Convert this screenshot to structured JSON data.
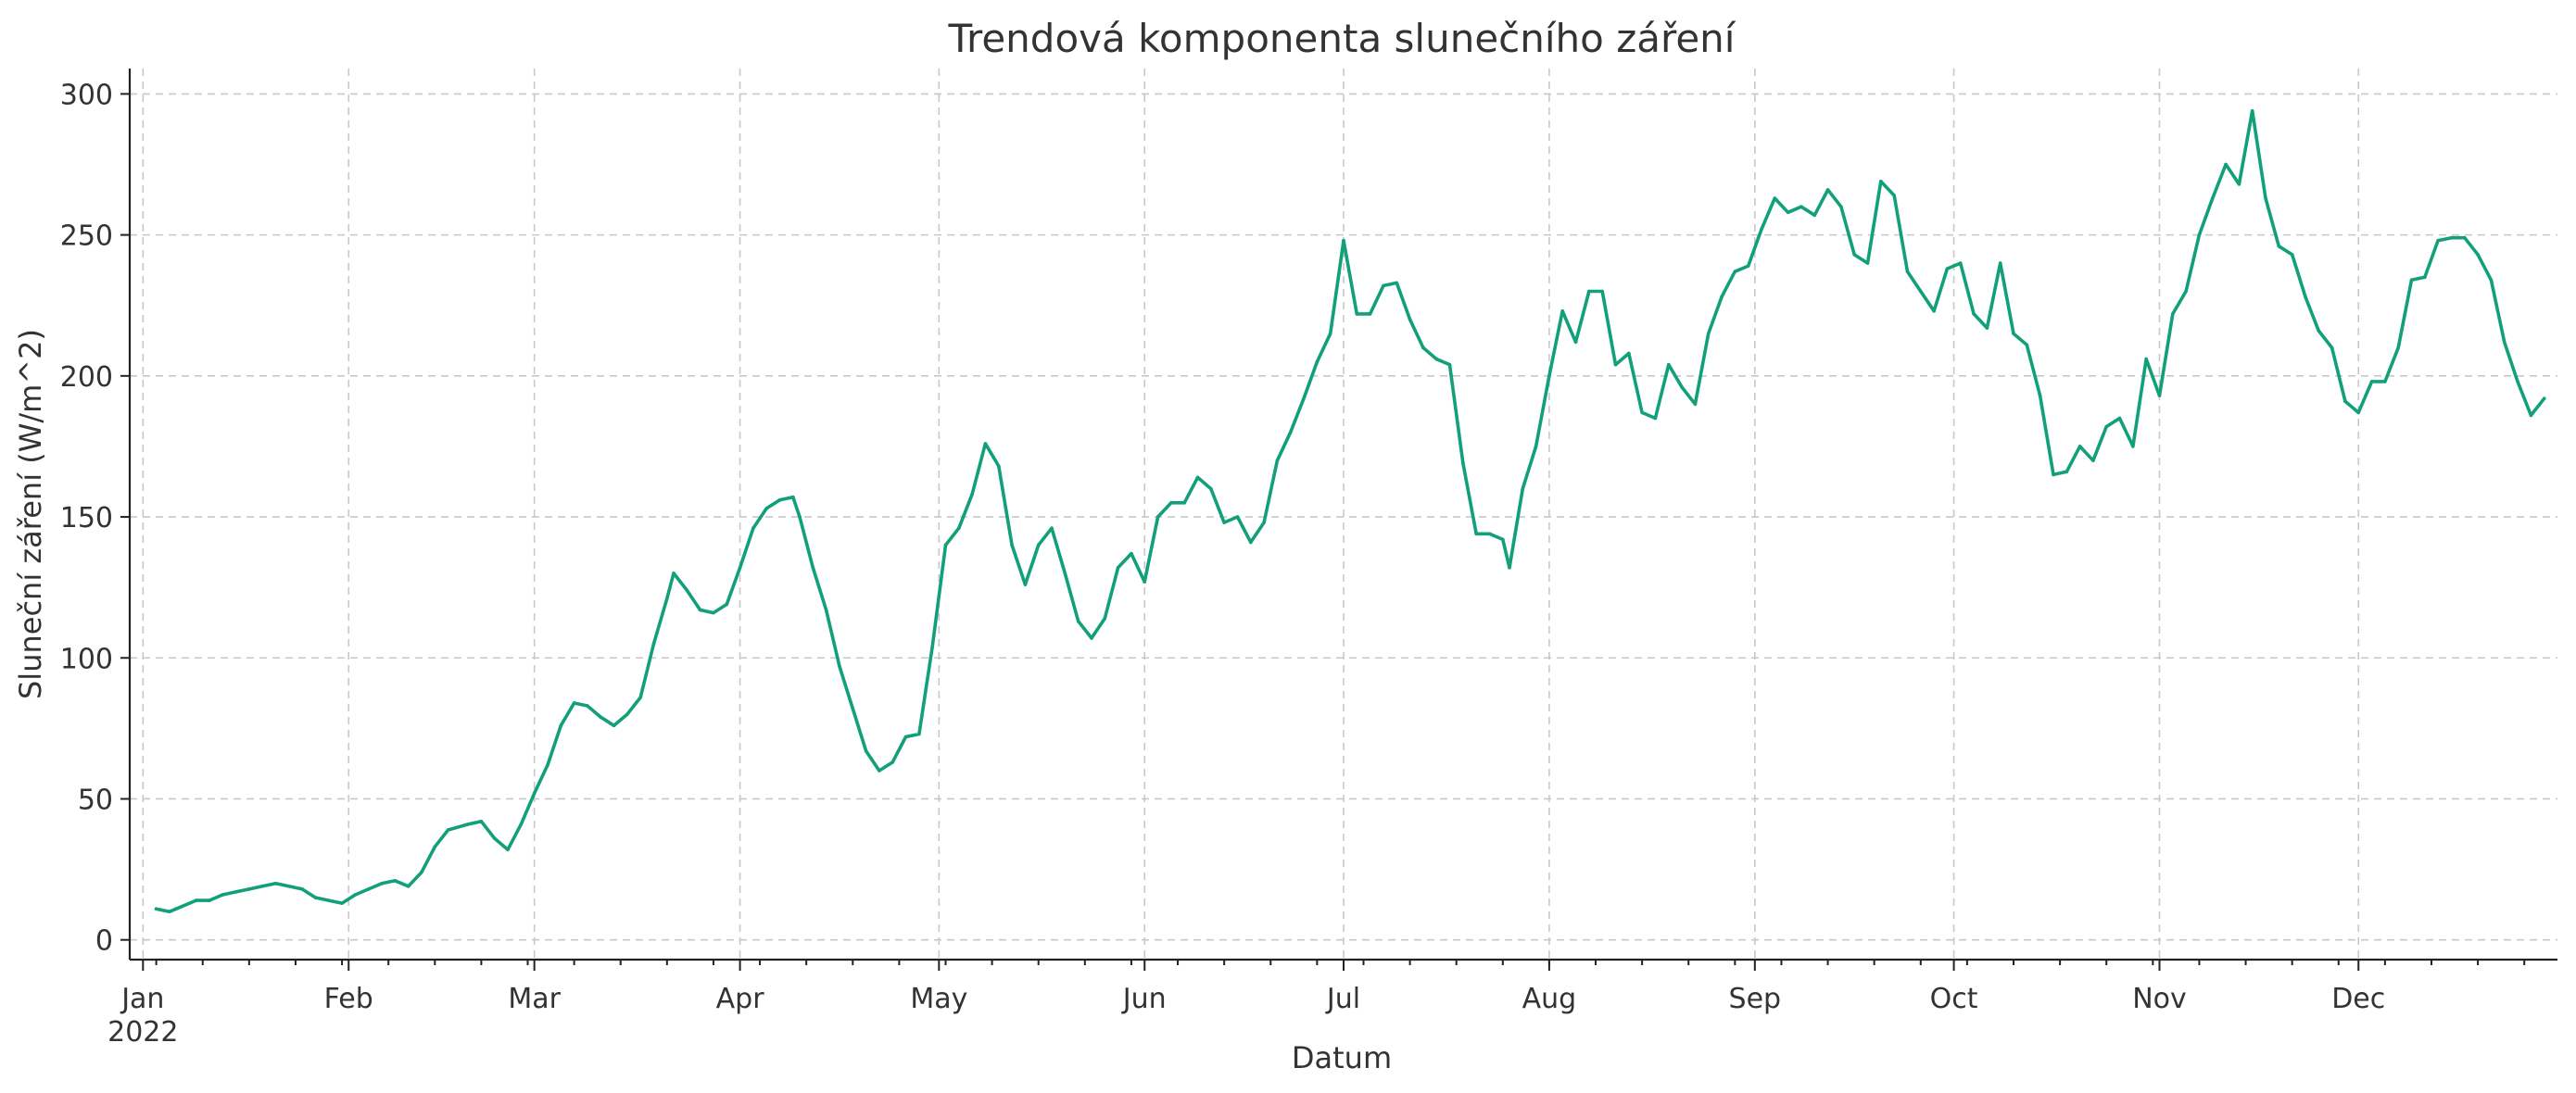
{
  "chart_data": {
    "type": "line",
    "title": "Trendová komponenta slunečního záření",
    "xlabel": "Datum",
    "ylabel": "Sluneční záření (W/m^2)",
    "x_axis": {
      "type": "date",
      "range": [
        "2021-12-30",
        "2022-12-31"
      ],
      "ticks": [
        {
          "date": "2022-01-01",
          "label": "Jan",
          "sublabel": "2022"
        },
        {
          "date": "2022-02-01",
          "label": "Feb"
        },
        {
          "date": "2022-03-01",
          "label": "Mar"
        },
        {
          "date": "2022-04-01",
          "label": "Apr"
        },
        {
          "date": "2022-05-01",
          "label": "May"
        },
        {
          "date": "2022-06-01",
          "label": "Jun"
        },
        {
          "date": "2022-07-01",
          "label": "Jul"
        },
        {
          "date": "2022-08-01",
          "label": "Aug"
        },
        {
          "date": "2022-09-01",
          "label": "Sep"
        },
        {
          "date": "2022-10-01",
          "label": "Oct"
        },
        {
          "date": "2022-11-01",
          "label": "Nov"
        },
        {
          "date": "2022-12-01",
          "label": "Dec"
        }
      ]
    },
    "ylim": [
      -7,
      309
    ],
    "yticks": [
      0,
      50,
      100,
      150,
      200,
      250,
      300
    ],
    "grid": true,
    "series": [
      {
        "color": "#12a07a",
        "points": [
          [
            "2022-01-03",
            11
          ],
          [
            "2022-01-05",
            10
          ],
          [
            "2022-01-07",
            12
          ],
          [
            "2022-01-09",
            14
          ],
          [
            "2022-01-11",
            14
          ],
          [
            "2022-01-13",
            16
          ],
          [
            "2022-01-15",
            17
          ],
          [
            "2022-01-17",
            18
          ],
          [
            "2022-01-19",
            19
          ],
          [
            "2022-01-21",
            20
          ],
          [
            "2022-01-23",
            19
          ],
          [
            "2022-01-25",
            18
          ],
          [
            "2022-01-27",
            15
          ],
          [
            "2022-01-29",
            14
          ],
          [
            "2022-01-31",
            13
          ],
          [
            "2022-02-02",
            16
          ],
          [
            "2022-02-04",
            18
          ],
          [
            "2022-02-06",
            20
          ],
          [
            "2022-02-08",
            21
          ],
          [
            "2022-02-10",
            19
          ],
          [
            "2022-02-12",
            24
          ],
          [
            "2022-02-14",
            33
          ],
          [
            "2022-02-16",
            39
          ],
          [
            "2022-02-19",
            41
          ],
          [
            "2022-02-21",
            42
          ],
          [
            "2022-02-23",
            36
          ],
          [
            "2022-02-25",
            32
          ],
          [
            "2022-02-27",
            41
          ],
          [
            "2022-03-01",
            52
          ],
          [
            "2022-03-03",
            62
          ],
          [
            "2022-03-05",
            76
          ],
          [
            "2022-03-07",
            84
          ],
          [
            "2022-03-09",
            83
          ],
          [
            "2022-03-11",
            79
          ],
          [
            "2022-03-13",
            76
          ],
          [
            "2022-03-15",
            80
          ],
          [
            "2022-03-17",
            86
          ],
          [
            "2022-03-19",
            105
          ],
          [
            "2022-03-21",
            121
          ],
          [
            "2022-03-22",
            130
          ],
          [
            "2022-03-24",
            124
          ],
          [
            "2022-03-26",
            117
          ],
          [
            "2022-03-28",
            116
          ],
          [
            "2022-03-30",
            119
          ],
          [
            "2022-04-01",
            132
          ],
          [
            "2022-04-03",
            146
          ],
          [
            "2022-04-05",
            153
          ],
          [
            "2022-04-07",
            156
          ],
          [
            "2022-04-09",
            157
          ],
          [
            "2022-04-10",
            150
          ],
          [
            "2022-04-12",
            132
          ],
          [
            "2022-04-14",
            117
          ],
          [
            "2022-04-16",
            97
          ],
          [
            "2022-04-18",
            82
          ],
          [
            "2022-04-20",
            67
          ],
          [
            "2022-04-22",
            60
          ],
          [
            "2022-04-24",
            63
          ],
          [
            "2022-04-26",
            72
          ],
          [
            "2022-04-28",
            73
          ],
          [
            "2022-04-30",
            104
          ],
          [
            "2022-05-02",
            140
          ],
          [
            "2022-05-04",
            146
          ],
          [
            "2022-05-06",
            158
          ],
          [
            "2022-05-08",
            176
          ],
          [
            "2022-05-10",
            168
          ],
          [
            "2022-05-12",
            140
          ],
          [
            "2022-05-14",
            126
          ],
          [
            "2022-05-16",
            140
          ],
          [
            "2022-05-18",
            146
          ],
          [
            "2022-05-20",
            130
          ],
          [
            "2022-05-22",
            113
          ],
          [
            "2022-05-24",
            107
          ],
          [
            "2022-05-26",
            114
          ],
          [
            "2022-05-28",
            132
          ],
          [
            "2022-05-30",
            137
          ],
          [
            "2022-06-01",
            127
          ],
          [
            "2022-06-03",
            150
          ],
          [
            "2022-06-05",
            155
          ],
          [
            "2022-06-07",
            155
          ],
          [
            "2022-06-09",
            164
          ],
          [
            "2022-06-11",
            160
          ],
          [
            "2022-06-13",
            148
          ],
          [
            "2022-06-15",
            150
          ],
          [
            "2022-06-17",
            141
          ],
          [
            "2022-06-19",
            148
          ],
          [
            "2022-06-21",
            170
          ],
          [
            "2022-06-23",
            180
          ],
          [
            "2022-06-25",
            192
          ],
          [
            "2022-06-27",
            205
          ],
          [
            "2022-06-29",
            215
          ],
          [
            "2022-07-01",
            248
          ],
          [
            "2022-07-03",
            222
          ],
          [
            "2022-07-05",
            222
          ],
          [
            "2022-07-07",
            232
          ],
          [
            "2022-07-09",
            233
          ],
          [
            "2022-07-11",
            220
          ],
          [
            "2022-07-13",
            210
          ],
          [
            "2022-07-15",
            206
          ],
          [
            "2022-07-17",
            204
          ],
          [
            "2022-07-19",
            169
          ],
          [
            "2022-07-21",
            144
          ],
          [
            "2022-07-23",
            144
          ],
          [
            "2022-07-25",
            142
          ],
          [
            "2022-07-26",
            132
          ],
          [
            "2022-07-28",
            160
          ],
          [
            "2022-07-30",
            175
          ],
          [
            "2022-08-01",
            200
          ],
          [
            "2022-08-03",
            223
          ],
          [
            "2022-08-05",
            212
          ],
          [
            "2022-08-07",
            230
          ],
          [
            "2022-08-09",
            230
          ],
          [
            "2022-08-11",
            204
          ],
          [
            "2022-08-13",
            208
          ],
          [
            "2022-08-15",
            187
          ],
          [
            "2022-08-17",
            185
          ],
          [
            "2022-08-19",
            204
          ],
          [
            "2022-08-21",
            196
          ],
          [
            "2022-08-23",
            190
          ],
          [
            "2022-08-25",
            215
          ],
          [
            "2022-08-27",
            228
          ],
          [
            "2022-08-29",
            237
          ],
          [
            "2022-08-31",
            239
          ],
          [
            "2022-09-02",
            252
          ],
          [
            "2022-09-04",
            263
          ],
          [
            "2022-09-06",
            258
          ],
          [
            "2022-09-08",
            260
          ],
          [
            "2022-09-10",
            257
          ],
          [
            "2022-09-12",
            266
          ],
          [
            "2022-09-14",
            260
          ],
          [
            "2022-09-16",
            243
          ],
          [
            "2022-09-18",
            240
          ],
          [
            "2022-09-20",
            269
          ],
          [
            "2022-09-22",
            264
          ],
          [
            "2022-09-24",
            237
          ],
          [
            "2022-09-26",
            230
          ],
          [
            "2022-09-28",
            223
          ],
          [
            "2022-09-30",
            238
          ],
          [
            "2022-10-02",
            240
          ],
          [
            "2022-10-04",
            222
          ],
          [
            "2022-10-06",
            217
          ],
          [
            "2022-10-08",
            240
          ],
          [
            "2022-10-10",
            215
          ],
          [
            "2022-10-12",
            211
          ],
          [
            "2022-10-14",
            193
          ],
          [
            "2022-10-16",
            165
          ],
          [
            "2022-10-18",
            166
          ],
          [
            "2022-10-20",
            175
          ],
          [
            "2022-10-22",
            170
          ],
          [
            "2022-10-24",
            182
          ],
          [
            "2022-10-26",
            185
          ],
          [
            "2022-10-28",
            175
          ],
          [
            "2022-10-30",
            206
          ],
          [
            "2022-11-01",
            193
          ],
          [
            "2022-11-03",
            222
          ],
          [
            "2022-11-05",
            230
          ],
          [
            "2022-11-07",
            250
          ],
          [
            "2022-11-09",
            263
          ],
          [
            "2022-11-11",
            275
          ],
          [
            "2022-11-13",
            268
          ],
          [
            "2022-11-15",
            294
          ],
          [
            "2022-11-17",
            263
          ],
          [
            "2022-11-19",
            246
          ],
          [
            "2022-11-21",
            243
          ],
          [
            "2022-11-23",
            228
          ],
          [
            "2022-11-25",
            216
          ],
          [
            "2022-11-27",
            210
          ],
          [
            "2022-11-29",
            191
          ],
          [
            "2022-12-01",
            187
          ],
          [
            "2022-12-03",
            198
          ],
          [
            "2022-12-05",
            198
          ],
          [
            "2022-12-07",
            210
          ],
          [
            "2022-12-09",
            234
          ],
          [
            "2022-12-11",
            235
          ],
          [
            "2022-12-13",
            248
          ],
          [
            "2022-12-15",
            249
          ],
          [
            "2022-12-17",
            249
          ],
          [
            "2022-12-19",
            243
          ],
          [
            "2022-12-21",
            234
          ],
          [
            "2022-12-23",
            212
          ],
          [
            "2022-12-25",
            198
          ],
          [
            "2022-12-27",
            186
          ],
          [
            "2022-12-29",
            192
          ]
        ]
      }
    ]
  }
}
